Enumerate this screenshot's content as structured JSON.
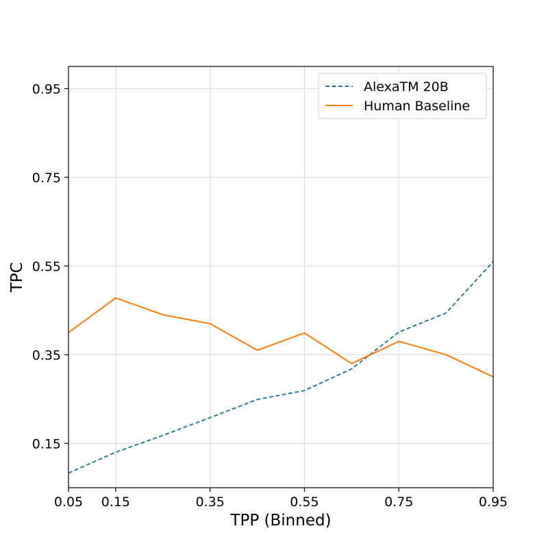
{
  "chart_data": {
    "type": "line",
    "title": "",
    "xlabel": "TPP (Binned)",
    "ylabel": "TPC",
    "xlim": [
      0.05,
      0.95
    ],
    "ylim": [
      0.05,
      1.0
    ],
    "xticks": [
      "0.05",
      "0.15",
      "0.35",
      "0.55",
      "0.75",
      "0.95"
    ],
    "yticks": [
      "0.15",
      "0.35",
      "0.55",
      "0.75",
      "0.95"
    ],
    "grid": true,
    "legend_position": "top-right",
    "series": [
      {
        "name": "AlexaTM 20B",
        "color": "#2f7a9a",
        "line_style": "dashed",
        "x": [
          0.05,
          0.15,
          0.25,
          0.35,
          0.45,
          0.55,
          0.65,
          0.75,
          0.85,
          0.95
        ],
        "y": [
          0.083,
          0.13,
          0.168,
          0.208,
          0.249,
          0.269,
          0.318,
          0.401,
          0.444,
          0.56
        ]
      },
      {
        "name": "Human Baseline",
        "color": "#ff7f0e",
        "line_style": "solid",
        "x": [
          0.05,
          0.15,
          0.25,
          0.35,
          0.45,
          0.55,
          0.65,
          0.75,
          0.85,
          0.95
        ],
        "y": [
          0.4,
          0.478,
          0.44,
          0.42,
          0.36,
          0.399,
          0.33,
          0.38,
          0.35,
          0.3
        ]
      }
    ]
  }
}
